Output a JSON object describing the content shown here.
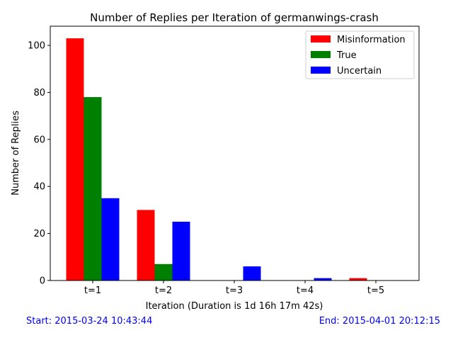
{
  "chart_data": {
    "type": "bar",
    "title": "Number of Replies per Iteration of germanwings-crash",
    "xlabel": "Iteration (Duration is 1d 16h 17m 42s)",
    "ylabel": "Number of Replies",
    "categories": [
      "t=1",
      "t=2",
      "t=3",
      "t=4",
      "t=5"
    ],
    "series": [
      {
        "name": "Misinformation",
        "color": "#ff0000",
        "values": [
          103,
          30,
          0,
          0,
          1
        ]
      },
      {
        "name": "True",
        "color": "#008000",
        "values": [
          78,
          7,
          0,
          0,
          0
        ]
      },
      {
        "name": "Uncertain",
        "color": "#0000ff",
        "values": [
          35,
          25,
          6,
          1,
          0
        ]
      }
    ],
    "yticks": [
      0,
      20,
      40,
      60,
      80,
      100
    ],
    "ylim": [
      0,
      108.15
    ],
    "legend_position": "top-right",
    "grid": false
  },
  "notes": {
    "start": "Start: 2015-03-24 10:43:44",
    "end": "End: 2015-04-01 20:12:15"
  }
}
